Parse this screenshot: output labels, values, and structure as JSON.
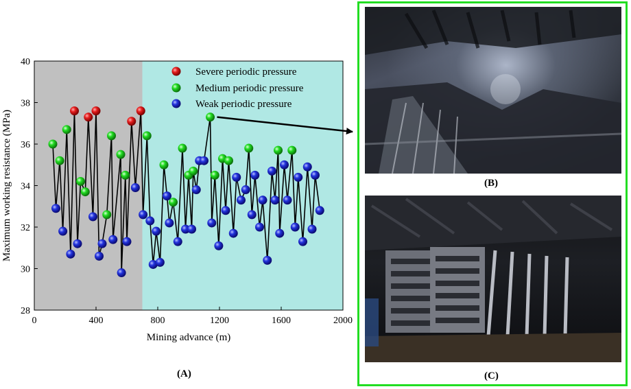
{
  "chart_data": {
    "type": "scatter",
    "xlabel": "Mining advance (m)",
    "ylabel": "Maximum working resistance (MPa)",
    "xlim": [
      0,
      2000
    ],
    "ylim": [
      28,
      40
    ],
    "xticks": [
      "0",
      "400",
      "800",
      "1200",
      "1600",
      "2000"
    ],
    "yticks": [
      "28",
      "30",
      "32",
      "34",
      "36",
      "38",
      "40"
    ],
    "grid": false,
    "legend_position": "top-right",
    "region_boundary_x": 700,
    "region_colors": {
      "left": "#c0c0c0",
      "right": "#b0e8e4"
    },
    "line_color": "#000000",
    "series": [
      {
        "name": "Severe periodic pressure",
        "color": "#e61e1e",
        "x": [
          260,
          350,
          400,
          630,
          690
        ],
        "y": [
          37.6,
          37.3,
          37.6,
          37.1,
          37.6
        ]
      },
      {
        "name": "Medium periodic pressure",
        "color": "#22dd22",
        "x": [
          120,
          165,
          210,
          300,
          330,
          470,
          500,
          560,
          590,
          730,
          840,
          900,
          960,
          1000,
          1030,
          1140,
          1170,
          1220,
          1260,
          1390,
          1580,
          1670
        ],
        "y": [
          36.0,
          35.2,
          36.7,
          34.2,
          33.7,
          32.6,
          36.4,
          35.5,
          34.5,
          36.4,
          35.0,
          33.2,
          35.8,
          34.5,
          34.7,
          37.3,
          34.5,
          35.3,
          35.2,
          35.8,
          35.7,
          35.7
        ]
      },
      {
        "name": "Weak periodic pressure",
        "color": "#2233dd",
        "x": [
          140,
          185,
          235,
          280,
          380,
          420,
          440,
          510,
          565,
          600,
          655,
          705,
          750,
          770,
          790,
          815,
          860,
          875,
          930,
          980,
          1020,
          1050,
          1070,
          1100,
          1150,
          1195,
          1240,
          1290,
          1310,
          1340,
          1370,
          1410,
          1430,
          1460,
          1480,
          1510,
          1540,
          1560,
          1590,
          1620,
          1640,
          1690,
          1710,
          1740,
          1770,
          1800,
          1820,
          1850
        ],
        "y": [
          32.9,
          31.8,
          30.7,
          31.2,
          32.5,
          30.6,
          31.2,
          31.4,
          29.8,
          31.3,
          33.9,
          32.6,
          32.3,
          30.2,
          31.8,
          30.3,
          33.5,
          32.2,
          31.3,
          31.9,
          31.9,
          33.8,
          35.2,
          35.2,
          32.2,
          31.1,
          32.8,
          31.7,
          34.4,
          33.3,
          33.8,
          32.6,
          34.5,
          32.0,
          33.3,
          30.4,
          34.7,
          33.3,
          31.7,
          35.0,
          33.3,
          32.0,
          34.4,
          31.3,
          34.9,
          31.9,
          34.5,
          32.8
        ]
      }
    ],
    "connected_path_order": [
      [
        120,
        36.0
      ],
      [
        140,
        32.9
      ],
      [
        165,
        35.2
      ],
      [
        185,
        31.8
      ],
      [
        210,
        36.7
      ],
      [
        235,
        30.7
      ],
      [
        260,
        37.6
      ],
      [
        280,
        31.2
      ],
      [
        300,
        34.2
      ],
      [
        330,
        33.7
      ],
      [
        350,
        37.3
      ],
      [
        380,
        32.5
      ],
      [
        400,
        37.6
      ],
      [
        420,
        30.6
      ],
      [
        440,
        31.2
      ],
      [
        470,
        32.6
      ],
      [
        500,
        36.4
      ],
      [
        510,
        31.4
      ],
      [
        560,
        35.5
      ],
      [
        565,
        29.8
      ],
      [
        590,
        34.5
      ],
      [
        600,
        31.3
      ],
      [
        630,
        37.1
      ],
      [
        655,
        33.9
      ],
      [
        690,
        37.6
      ],
      [
        705,
        32.6
      ],
      [
        730,
        36.4
      ],
      [
        750,
        32.3
      ],
      [
        770,
        30.2
      ],
      [
        790,
        31.8
      ],
      [
        815,
        30.3
      ],
      [
        840,
        35.0
      ],
      [
        860,
        33.5
      ],
      [
        875,
        32.2
      ],
      [
        900,
        33.2
      ],
      [
        930,
        31.3
      ],
      [
        960,
        35.8
      ],
      [
        980,
        31.9
      ],
      [
        1000,
        34.5
      ],
      [
        1020,
        31.9
      ],
      [
        1030,
        34.7
      ],
      [
        1050,
        33.8
      ],
      [
        1070,
        35.2
      ],
      [
        1100,
        35.2
      ],
      [
        1140,
        37.3
      ],
      [
        1150,
        32.2
      ],
      [
        1170,
        34.5
      ],
      [
        1195,
        31.1
      ],
      [
        1220,
        35.3
      ],
      [
        1240,
        32.8
      ],
      [
        1260,
        35.2
      ],
      [
        1290,
        31.7
      ],
      [
        1310,
        34.4
      ],
      [
        1340,
        33.3
      ],
      [
        1370,
        33.8
      ],
      [
        1390,
        35.8
      ],
      [
        1410,
        32.6
      ],
      [
        1430,
        34.5
      ],
      [
        1460,
        32.0
      ],
      [
        1480,
        33.3
      ],
      [
        1510,
        30.4
      ],
      [
        1540,
        34.7
      ],
      [
        1560,
        33.3
      ],
      [
        1580,
        35.7
      ],
      [
        1590,
        31.7
      ],
      [
        1620,
        35.0
      ],
      [
        1640,
        33.3
      ],
      [
        1670,
        35.7
      ],
      [
        1690,
        32.0
      ],
      [
        1710,
        34.4
      ],
      [
        1740,
        31.3
      ],
      [
        1770,
        34.9
      ],
      [
        1800,
        31.9
      ],
      [
        1820,
        34.5
      ],
      [
        1850,
        32.8
      ]
    ],
    "arrow_from_point": [
      1140,
      37.3
    ]
  },
  "labels": {
    "panel_a": "(A)",
    "panel_b": "(B)",
    "panel_c": "(C)"
  },
  "colors": {
    "frame": "#22dd22"
  }
}
